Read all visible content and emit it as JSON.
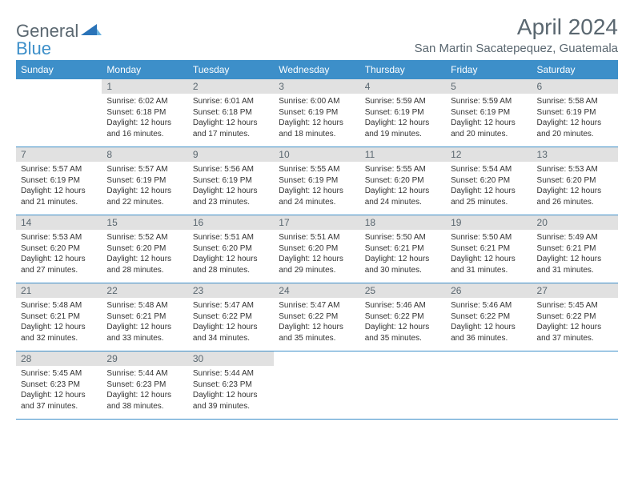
{
  "logo": {
    "part1": "General",
    "part2": "Blue"
  },
  "title": "April 2024",
  "location": "San Martin Sacatepequez, Guatemala",
  "colors": {
    "header_bg": "#3d8fc9",
    "header_text": "#ffffff",
    "daynum_bg": "#e1e1e1",
    "text_muted": "#5a6770",
    "text_body": "#333333",
    "rule": "#3d8fc9",
    "background": "#ffffff"
  },
  "typography": {
    "title_fontsize": 28,
    "location_fontsize": 15,
    "dayheader_fontsize": 12,
    "daynum_fontsize": 12,
    "body_fontsize": 10
  },
  "day_headers": [
    "Sunday",
    "Monday",
    "Tuesday",
    "Wednesday",
    "Thursday",
    "Friday",
    "Saturday"
  ],
  "weeks": [
    [
      null,
      {
        "n": "1",
        "sr": "6:02 AM",
        "ss": "6:18 PM",
        "dh": "12",
        "dm": "16"
      },
      {
        "n": "2",
        "sr": "6:01 AM",
        "ss": "6:18 PM",
        "dh": "12",
        "dm": "17"
      },
      {
        "n": "3",
        "sr": "6:00 AM",
        "ss": "6:19 PM",
        "dh": "12",
        "dm": "18"
      },
      {
        "n": "4",
        "sr": "5:59 AM",
        "ss": "6:19 PM",
        "dh": "12",
        "dm": "19"
      },
      {
        "n": "5",
        "sr": "5:59 AM",
        "ss": "6:19 PM",
        "dh": "12",
        "dm": "20"
      },
      {
        "n": "6",
        "sr": "5:58 AM",
        "ss": "6:19 PM",
        "dh": "12",
        "dm": "20"
      }
    ],
    [
      {
        "n": "7",
        "sr": "5:57 AM",
        "ss": "6:19 PM",
        "dh": "12",
        "dm": "21"
      },
      {
        "n": "8",
        "sr": "5:57 AM",
        "ss": "6:19 PM",
        "dh": "12",
        "dm": "22"
      },
      {
        "n": "9",
        "sr": "5:56 AM",
        "ss": "6:19 PM",
        "dh": "12",
        "dm": "23"
      },
      {
        "n": "10",
        "sr": "5:55 AM",
        "ss": "6:19 PM",
        "dh": "12",
        "dm": "24"
      },
      {
        "n": "11",
        "sr": "5:55 AM",
        "ss": "6:20 PM",
        "dh": "12",
        "dm": "24"
      },
      {
        "n": "12",
        "sr": "5:54 AM",
        "ss": "6:20 PM",
        "dh": "12",
        "dm": "25"
      },
      {
        "n": "13",
        "sr": "5:53 AM",
        "ss": "6:20 PM",
        "dh": "12",
        "dm": "26"
      }
    ],
    [
      {
        "n": "14",
        "sr": "5:53 AM",
        "ss": "6:20 PM",
        "dh": "12",
        "dm": "27"
      },
      {
        "n": "15",
        "sr": "5:52 AM",
        "ss": "6:20 PM",
        "dh": "12",
        "dm": "28"
      },
      {
        "n": "16",
        "sr": "5:51 AM",
        "ss": "6:20 PM",
        "dh": "12",
        "dm": "28"
      },
      {
        "n": "17",
        "sr": "5:51 AM",
        "ss": "6:20 PM",
        "dh": "12",
        "dm": "29"
      },
      {
        "n": "18",
        "sr": "5:50 AM",
        "ss": "6:21 PM",
        "dh": "12",
        "dm": "30"
      },
      {
        "n": "19",
        "sr": "5:50 AM",
        "ss": "6:21 PM",
        "dh": "12",
        "dm": "31"
      },
      {
        "n": "20",
        "sr": "5:49 AM",
        "ss": "6:21 PM",
        "dh": "12",
        "dm": "31"
      }
    ],
    [
      {
        "n": "21",
        "sr": "5:48 AM",
        "ss": "6:21 PM",
        "dh": "12",
        "dm": "32"
      },
      {
        "n": "22",
        "sr": "5:48 AM",
        "ss": "6:21 PM",
        "dh": "12",
        "dm": "33"
      },
      {
        "n": "23",
        "sr": "5:47 AM",
        "ss": "6:22 PM",
        "dh": "12",
        "dm": "34"
      },
      {
        "n": "24",
        "sr": "5:47 AM",
        "ss": "6:22 PM",
        "dh": "12",
        "dm": "35"
      },
      {
        "n": "25",
        "sr": "5:46 AM",
        "ss": "6:22 PM",
        "dh": "12",
        "dm": "35"
      },
      {
        "n": "26",
        "sr": "5:46 AM",
        "ss": "6:22 PM",
        "dh": "12",
        "dm": "36"
      },
      {
        "n": "27",
        "sr": "5:45 AM",
        "ss": "6:22 PM",
        "dh": "12",
        "dm": "37"
      }
    ],
    [
      {
        "n": "28",
        "sr": "5:45 AM",
        "ss": "6:23 PM",
        "dh": "12",
        "dm": "37"
      },
      {
        "n": "29",
        "sr": "5:44 AM",
        "ss": "6:23 PM",
        "dh": "12",
        "dm": "38"
      },
      {
        "n": "30",
        "sr": "5:44 AM",
        "ss": "6:23 PM",
        "dh": "12",
        "dm": "39"
      },
      null,
      null,
      null,
      null
    ]
  ],
  "labels": {
    "sunrise": "Sunrise:",
    "sunset": "Sunset:",
    "daylight": "Daylight:",
    "hours": "hours",
    "and": "and",
    "minutes": "minutes."
  }
}
